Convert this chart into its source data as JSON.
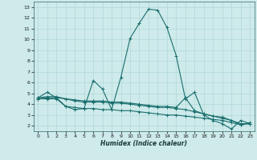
{
  "xlabel": "Humidex (Indice chaleur)",
  "background_color": "#ceeaea",
  "grid_color": "#b0d8d8",
  "line_color": "#1a6e6e",
  "xlim": [
    -0.5,
    23.5
  ],
  "ylim": [
    1.5,
    13.5
  ],
  "xticks": [
    0,
    1,
    2,
    3,
    4,
    5,
    6,
    7,
    8,
    9,
    10,
    11,
    12,
    13,
    14,
    15,
    16,
    17,
    18,
    19,
    20,
    21,
    22,
    23
  ],
  "yticks": [
    2,
    3,
    4,
    5,
    6,
    7,
    8,
    9,
    10,
    11,
    12,
    13
  ],
  "series": [
    {
      "x": [
        0,
        1,
        2,
        3,
        4,
        5,
        6,
        7,
        8,
        9,
        10,
        11,
        12,
        13,
        14,
        15,
        16,
        17,
        18,
        19,
        20,
        21,
        22,
        23
      ],
      "y": [
        4.6,
        5.1,
        4.6,
        3.8,
        3.5,
        3.6,
        6.2,
        5.4,
        3.5,
        6.5,
        10.1,
        11.5,
        12.8,
        12.7,
        11.1,
        8.5,
        4.5,
        5.1,
        3.0,
        2.5,
        2.2,
        1.7,
        2.5,
        2.2
      ]
    },
    {
      "x": [
        0,
        1,
        2,
        3,
        4,
        5,
        6,
        7,
        8,
        9,
        10,
        11,
        12,
        13,
        14,
        15,
        16,
        17,
        18,
        19,
        20,
        21,
        22,
        23
      ],
      "y": [
        4.6,
        4.7,
        4.7,
        4.5,
        4.4,
        4.3,
        4.3,
        4.3,
        4.2,
        4.2,
        4.1,
        4.0,
        3.9,
        3.8,
        3.8,
        3.7,
        4.6,
        3.4,
        3.1,
        2.9,
        2.8,
        2.5,
        2.2,
        2.2
      ]
    },
    {
      "x": [
        0,
        1,
        2,
        3,
        4,
        5,
        6,
        7,
        8,
        9,
        10,
        11,
        12,
        13,
        14,
        15,
        16,
        17,
        18,
        19,
        20,
        21,
        22,
        23
      ],
      "y": [
        4.5,
        4.6,
        4.6,
        4.5,
        4.3,
        4.2,
        4.2,
        4.2,
        4.1,
        4.1,
        4.0,
        3.9,
        3.8,
        3.7,
        3.7,
        3.6,
        3.5,
        3.3,
        3.1,
        2.9,
        2.7,
        2.5,
        2.1,
        2.3
      ]
    },
    {
      "x": [
        0,
        1,
        2,
        3,
        4,
        5,
        6,
        7,
        8,
        9,
        10,
        11,
        12,
        13,
        14,
        15,
        16,
        17,
        18,
        19,
        20,
        21,
        22,
        23
      ],
      "y": [
        4.5,
        4.5,
        4.5,
        3.8,
        3.7,
        3.6,
        3.6,
        3.5,
        3.5,
        3.4,
        3.4,
        3.3,
        3.2,
        3.1,
        3.0,
        3.0,
        2.9,
        2.8,
        2.7,
        2.6,
        2.5,
        2.3,
        2.1,
        2.2
      ]
    }
  ]
}
